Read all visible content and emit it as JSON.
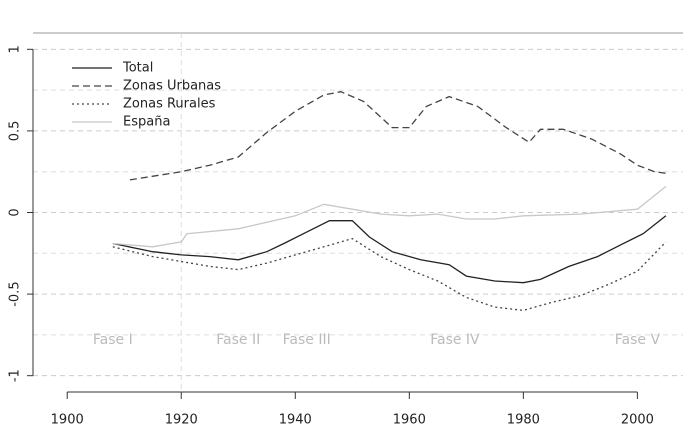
{
  "chart_data": {
    "type": "line",
    "xlim": [
      1894,
      2008
    ],
    "xticks": [
      1900,
      1920,
      1940,
      1960,
      1980,
      2000
    ],
    "ylim": [
      -1.1,
      1.1
    ],
    "yticks": [
      -1.0,
      -0.5,
      0.0,
      0.5,
      1.0
    ],
    "grid": true,
    "legend": "top-left",
    "phase_lines": [
      1920
    ],
    "annotations": [
      {
        "text": "Fase I",
        "x": 1908,
        "y": -0.78
      },
      {
        "text": "Fase II",
        "x": 1930,
        "y": -0.78
      },
      {
        "text": "Fase III",
        "x": 1942,
        "y": -0.78
      },
      {
        "text": "Fase IV",
        "x": 1968,
        "y": -0.78
      },
      {
        "text": "Fase V",
        "x": 2000,
        "y": -0.78
      }
    ],
    "series": [
      {
        "name": "Total",
        "color": "#222222",
        "dash": "solid",
        "x": [
          1908,
          1915,
          1920,
          1925,
          1930,
          1935,
          1938,
          1942,
          1946,
          1950,
          1953,
          1957,
          1962,
          1967,
          1970,
          1975,
          1980,
          1983,
          1988,
          1993,
          1997,
          2001,
          2005
        ],
        "values": [
          -0.19,
          -0.24,
          -0.26,
          -0.27,
          -0.29,
          -0.24,
          -0.19,
          -0.12,
          -0.05,
          -0.05,
          -0.15,
          -0.24,
          -0.29,
          -0.32,
          -0.39,
          -0.42,
          -0.43,
          -0.41,
          -0.33,
          -0.27,
          -0.2,
          -0.13,
          -0.02
        ]
      },
      {
        "name": "Zonas Urbanas",
        "color": "#444444",
        "dash": "dashed",
        "x": [
          1911,
          1920,
          1925,
          1930,
          1935,
          1940,
          1945,
          1948,
          1952,
          1957,
          1960,
          1963,
          1967,
          1972,
          1977,
          1981,
          1983,
          1987,
          1992,
          1997,
          2000,
          2003,
          2005
        ],
        "values": [
          0.2,
          0.25,
          0.29,
          0.34,
          0.49,
          0.62,
          0.72,
          0.74,
          0.68,
          0.52,
          0.52,
          0.65,
          0.71,
          0.65,
          0.52,
          0.43,
          0.51,
          0.51,
          0.45,
          0.36,
          0.29,
          0.25,
          0.24
        ]
      },
      {
        "name": "Zonas Rurales",
        "color": "#444444",
        "dash": "dotted",
        "x": [
          1908,
          1915,
          1920,
          1925,
          1930,
          1935,
          1940,
          1945,
          1950,
          1955,
          1960,
          1965,
          1970,
          1975,
          1980,
          1985,
          1990,
          1995,
          2000,
          2005
        ],
        "values": [
          -0.21,
          -0.27,
          -0.3,
          -0.33,
          -0.35,
          -0.31,
          -0.26,
          -0.21,
          -0.16,
          -0.27,
          -0.35,
          -0.42,
          -0.52,
          -0.58,
          -0.6,
          -0.55,
          -0.51,
          -0.44,
          -0.36,
          -0.18
        ]
      },
      {
        "name": "España",
        "color": "#c8c8c8",
        "dash": "solid",
        "x": [
          1908,
          1915,
          1920,
          1921,
          1930,
          1940,
          1945,
          1950,
          1955,
          1960,
          1965,
          1970,
          1975,
          1980,
          1990,
          2000,
          2005
        ],
        "values": [
          -0.19,
          -0.21,
          -0.18,
          -0.13,
          -0.1,
          -0.02,
          0.05,
          0.02,
          -0.01,
          -0.02,
          -0.01,
          -0.04,
          -0.04,
          -0.02,
          -0.01,
          0.02,
          0.16
        ]
      }
    ]
  }
}
